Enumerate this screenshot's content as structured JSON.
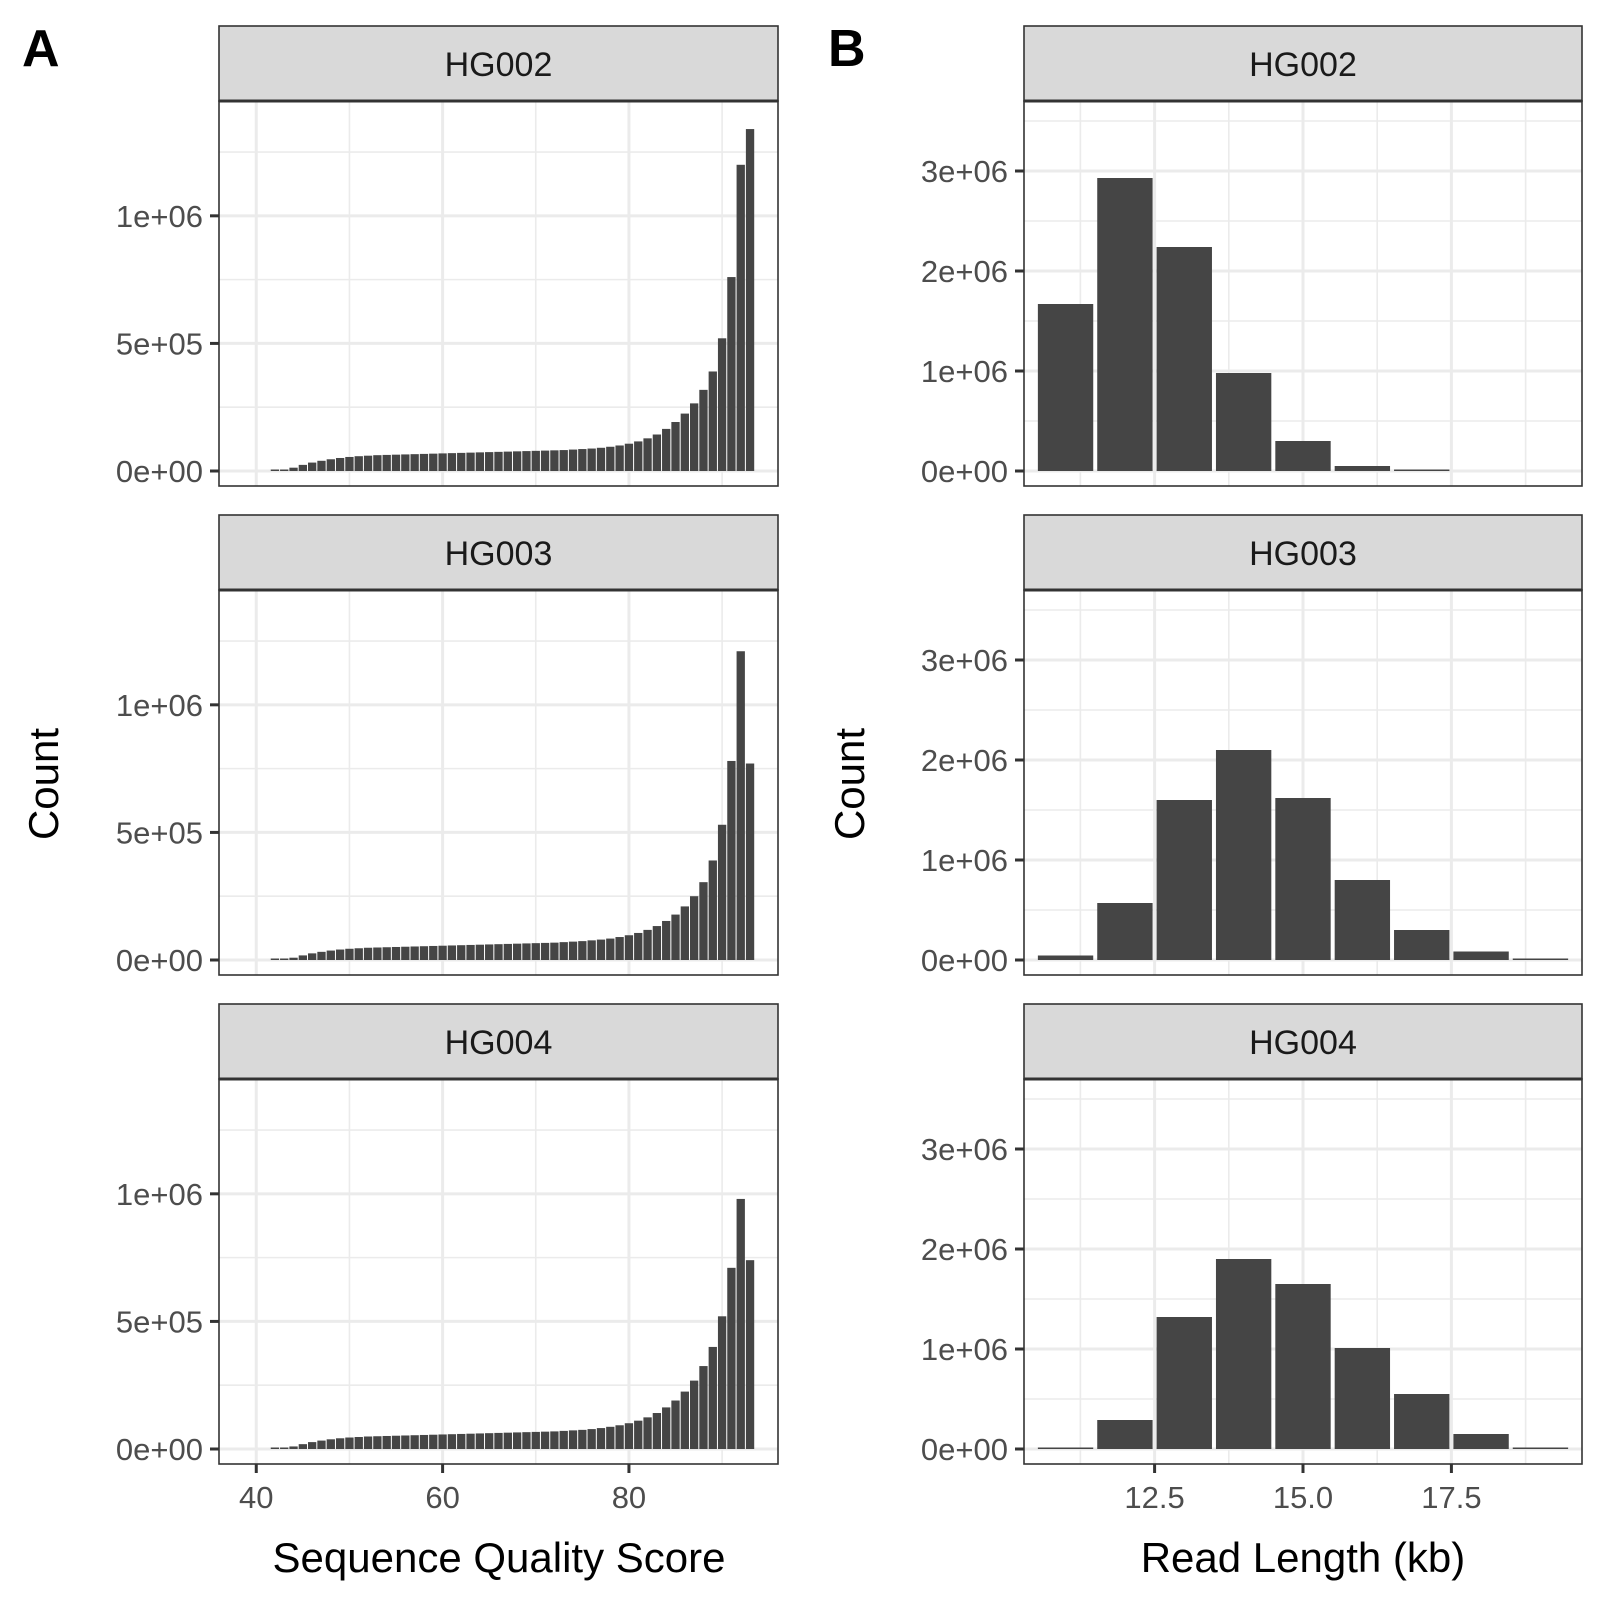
{
  "panel_labels": [
    "A",
    "B"
  ],
  "chart_data": [
    {
      "panel": "A",
      "type": "bar",
      "xlabel": "Sequence Quality Score",
      "ylabel": "Count",
      "xlim": [
        36,
        96
      ],
      "ylim": [
        0,
        1450000
      ],
      "x_ticks": [
        40,
        60,
        80
      ],
      "y_ticks": [
        0,
        500000,
        1000000
      ],
      "y_tick_labels": [
        "0e+00",
        "5e+05",
        "1e+06"
      ],
      "bin_width": 1,
      "grid": true,
      "facets": [
        {
          "name": "HG002",
          "x": [
            41,
            42,
            43,
            44,
            45,
            46,
            47,
            48,
            49,
            50,
            51,
            52,
            53,
            54,
            55,
            56,
            57,
            58,
            59,
            60,
            61,
            62,
            63,
            64,
            65,
            66,
            67,
            68,
            69,
            70,
            71,
            72,
            73,
            74,
            75,
            76,
            77,
            78,
            79,
            80,
            81,
            82,
            83,
            84,
            85,
            86,
            87,
            88,
            89,
            90,
            91,
            92,
            93
          ],
          "values": [
            0,
            2000,
            5000,
            13000,
            24000,
            33000,
            40000,
            46000,
            51000,
            55000,
            58000,
            60000,
            62000,
            63000,
            64000,
            65000,
            66000,
            67000,
            68000,
            69000,
            70000,
            71000,
            72000,
            73000,
            74000,
            75000,
            76000,
            77000,
            78000,
            79000,
            80000,
            81000,
            82000,
            84000,
            86000,
            88000,
            91000,
            95000,
            100000,
            107000,
            116000,
            128000,
            143000,
            165000,
            192000,
            225000,
            265000,
            318000,
            390000,
            520000,
            760000,
            1200000,
            1340000
          ]
        },
        {
          "name": "HG003",
          "x": [
            41,
            42,
            43,
            44,
            45,
            46,
            47,
            48,
            49,
            50,
            51,
            52,
            53,
            54,
            55,
            56,
            57,
            58,
            59,
            60,
            61,
            62,
            63,
            64,
            65,
            66,
            67,
            68,
            69,
            70,
            71,
            72,
            73,
            74,
            75,
            76,
            77,
            78,
            79,
            80,
            81,
            82,
            83,
            84,
            85,
            86,
            87,
            88,
            89,
            90,
            91,
            92,
            93
          ],
          "values": [
            0,
            1000,
            3000,
            9000,
            18000,
            26000,
            32000,
            37000,
            41000,
            44000,
            46000,
            48000,
            49000,
            50000,
            51000,
            52000,
            53000,
            54000,
            55000,
            56000,
            57000,
            58000,
            59000,
            60000,
            61000,
            62000,
            63000,
            64000,
            65000,
            66000,
            67000,
            68000,
            70000,
            72000,
            74000,
            77000,
            80000,
            84000,
            90000,
            97000,
            106000,
            118000,
            133000,
            153000,
            178000,
            210000,
            250000,
            305000,
            390000,
            530000,
            780000,
            1210000,
            770000
          ]
        },
        {
          "name": "HG004",
          "x": [
            41,
            42,
            43,
            44,
            45,
            46,
            47,
            48,
            49,
            50,
            51,
            52,
            53,
            54,
            55,
            56,
            57,
            58,
            59,
            60,
            61,
            62,
            63,
            64,
            65,
            66,
            67,
            68,
            69,
            70,
            71,
            72,
            73,
            74,
            75,
            76,
            77,
            78,
            79,
            80,
            81,
            82,
            83,
            84,
            85,
            86,
            87,
            88,
            89,
            90,
            91,
            92,
            93
          ],
          "values": [
            0,
            1000,
            3000,
            10000,
            19000,
            27000,
            33000,
            38000,
            42000,
            45000,
            47000,
            49000,
            50000,
            51000,
            52000,
            53000,
            54000,
            55000,
            56000,
            57000,
            58000,
            59000,
            60000,
            61000,
            62000,
            63000,
            64000,
            65000,
            66000,
            67000,
            68000,
            69000,
            71000,
            73000,
            75000,
            78000,
            82000,
            87000,
            93000,
            101000,
            111000,
            124000,
            141000,
            163000,
            190000,
            225000,
            268000,
            325000,
            400000,
            520000,
            710000,
            980000,
            740000
          ]
        }
      ]
    },
    {
      "panel": "B",
      "type": "bar",
      "xlabel": "Read Length (kb)",
      "ylabel": "Count",
      "xlim": [
        10.3,
        19.7
      ],
      "ylim": [
        0,
        3700000
      ],
      "x_ticks": [
        12.5,
        15.0,
        17.5
      ],
      "x_tick_labels": [
        "12.5",
        "15.0",
        "17.5"
      ],
      "y_ticks": [
        0,
        1000000,
        2000000,
        3000000
      ],
      "y_tick_labels": [
        "0e+00",
        "1e+06",
        "2e+06",
        "3e+06"
      ],
      "bin_width": 1,
      "grid": true,
      "facets": [
        {
          "name": "HG002",
          "x": [
            11,
            12,
            13,
            14,
            15,
            16,
            17,
            18,
            19
          ],
          "values": [
            1670000,
            2930000,
            2240000,
            980000,
            300000,
            50000,
            5000,
            0,
            0
          ]
        },
        {
          "name": "HG003",
          "x": [
            11,
            12,
            13,
            14,
            15,
            16,
            17,
            18,
            19
          ],
          "values": [
            45000,
            570000,
            1600000,
            2100000,
            1620000,
            800000,
            300000,
            85000,
            8000
          ]
        },
        {
          "name": "HG004",
          "x": [
            11,
            12,
            13,
            14,
            15,
            16,
            17,
            18,
            19
          ],
          "values": [
            15000,
            290000,
            1320000,
            1900000,
            1650000,
            1010000,
            550000,
            150000,
            12000
          ]
        }
      ]
    }
  ]
}
